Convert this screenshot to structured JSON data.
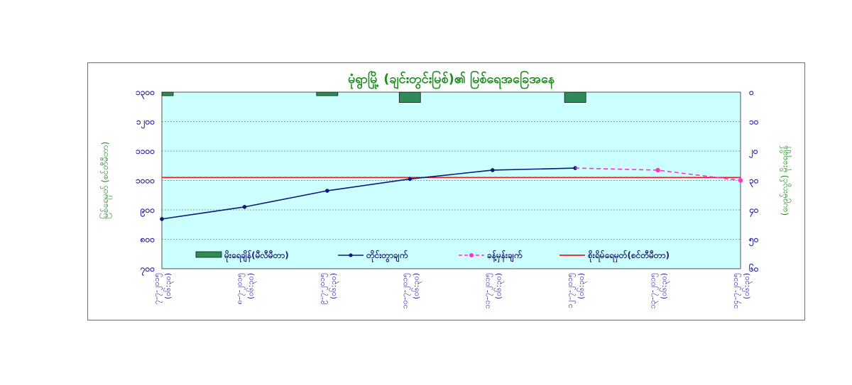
{
  "chart_data": {
    "type": "line",
    "title": "မုံရွာမြို့ (ချင်းတွင်းမြစ်)၏ မြစ်ရေအခြေအနေ",
    "ylabel_left": "မြစ်ရေမှတ် (စင်တီမီတာ)",
    "ylabel_right": "(ပေ၉မ်းလွင်) မိုးရေချိန်",
    "left_ylim": [
      700,
      1200
    ],
    "left_ticks": [
      "၇၀၀",
      "၈၀၀",
      "၉၀၀",
      "၁၀၀၀",
      "၁၁၀၀",
      "၁၂၀၀",
      "၁၃၀၀"
    ],
    "left_tick_values": [
      700,
      800,
      900,
      1000,
      1100,
      1200,
      1300
    ],
    "right_ylim": [
      0,
      60
    ],
    "right_ticks": [
      "၀",
      "၁၀",
      "၂၀",
      "၃၀",
      "၄၀",
      "၅၀",
      "၆၀"
    ],
    "right_tick_values": [
      0,
      10,
      20,
      30,
      40,
      50,
      60
    ],
    "categories": [
      "၇-၇-၂၀၁၅ (၀၆:၃၀)",
      "၈-၇-၂၀၁၅ (၀၆:၃၀)",
      "၉-၇-၂၀၁၅ (၀၆:၃၀)",
      "၁၀-၇-၂၀၁၅ (၀၆:၃၀)",
      "၁၁-၇-၂၀၁၅ (၀၆:၃၀)",
      "၁၂-၇-၂၀၁၅ (၀၆:၃၀)",
      "၁၃-၇-၂၀၁၅ (၀၆:၃၀)",
      "၁၄-၇-၂၀၁၅ (၀၆:၃၀)"
    ],
    "series": [
      {
        "name": "မိုးရေချိန်(မီလီမီတာ)",
        "kind": "bar",
        "axis": "right",
        "color": "#2e8b57",
        "values": [
          1.2,
          null,
          1.2,
          3.5,
          null,
          3.5,
          null,
          null
        ]
      },
      {
        "name": "တိုင်းတွာချက်",
        "kind": "line",
        "axis": "left",
        "color": "#0a1a7a",
        "values": [
          869,
          910,
          965,
          1005,
          1035,
          1042,
          null,
          null
        ]
      },
      {
        "name": "ခန့်မှန်းချက်",
        "kind": "dashed-line",
        "axis": "left",
        "color": "#ff33cc",
        "values": [
          null,
          null,
          null,
          null,
          null,
          null,
          1035,
          1000
        ]
      },
      {
        "name": "စိုးရိမ်ရေမှတ်(စင်တီမီတာ)",
        "kind": "hline",
        "axis": "left",
        "color": "#e62020",
        "value": 1010
      }
    ],
    "plot_background": "#ccffff",
    "grid": true,
    "legend_position": "inside-bottom"
  }
}
